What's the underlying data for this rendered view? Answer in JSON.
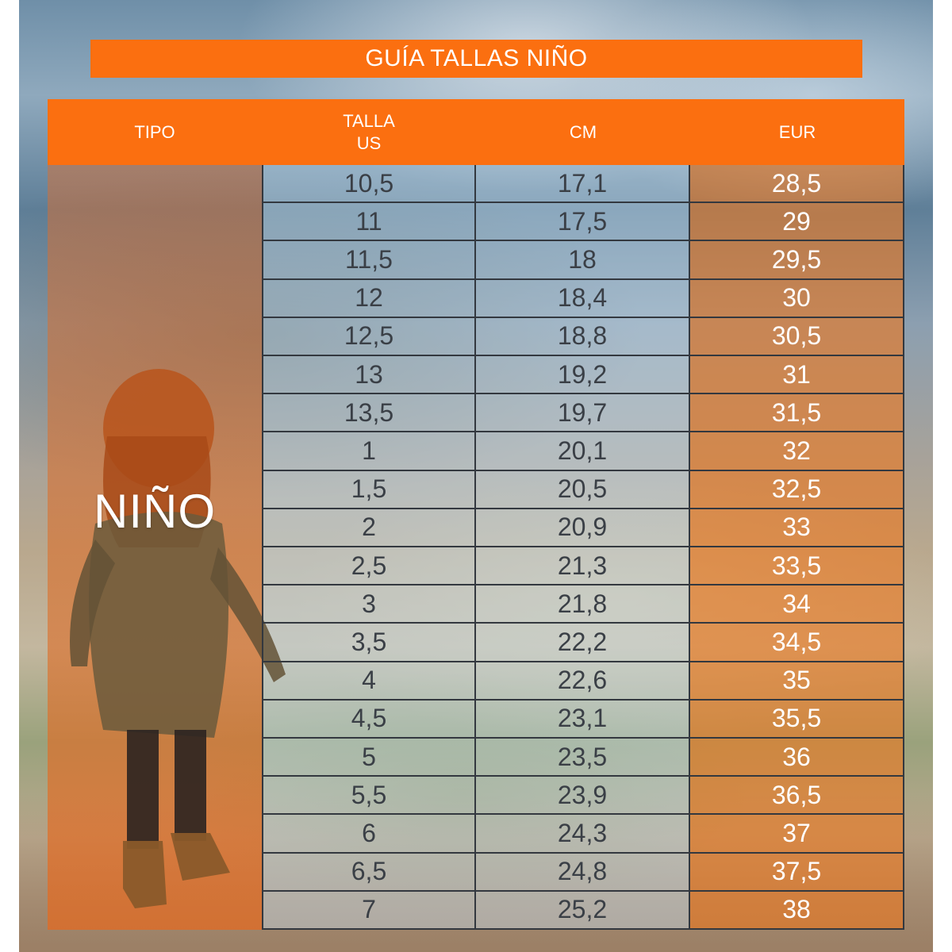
{
  "title": "GUÍA TALLAS NIÑO",
  "headers": {
    "tipo": "TIPO",
    "talla_line1": "TALLA",
    "talla_line2": "US",
    "cm": "CM",
    "eur": "EUR"
  },
  "tipo_label": "NIÑO",
  "colors": {
    "accent": "#fb6f10",
    "grid": "#33383f"
  },
  "rows": [
    {
      "us": "10,5",
      "cm": "17,1",
      "eur": "28,5"
    },
    {
      "us": "11",
      "cm": "17,5",
      "eur": "29"
    },
    {
      "us": "11,5",
      "cm": "18",
      "eur": "29,5"
    },
    {
      "us": "12",
      "cm": "18,4",
      "eur": "30"
    },
    {
      "us": "12,5",
      "cm": "18,8",
      "eur": "30,5"
    },
    {
      "us": "13",
      "cm": "19,2",
      "eur": "31"
    },
    {
      "us": "13,5",
      "cm": "19,7",
      "eur": "31,5"
    },
    {
      "us": "1",
      "cm": "20,1",
      "eur": "32"
    },
    {
      "us": "1,5",
      "cm": "20,5",
      "eur": "32,5"
    },
    {
      "us": "2",
      "cm": "20,9",
      "eur": "33"
    },
    {
      "us": "2,5",
      "cm": "21,3",
      "eur": "33,5"
    },
    {
      "us": "3",
      "cm": "21,8",
      "eur": "34"
    },
    {
      "us": "3,5",
      "cm": "22,2",
      "eur": "34,5"
    },
    {
      "us": "4",
      "cm": "22,6",
      "eur": "35"
    },
    {
      "us": "4,5",
      "cm": "23,1",
      "eur": "35,5"
    },
    {
      "us": "5",
      "cm": "23,5",
      "eur": "36"
    },
    {
      "us": "5,5",
      "cm": "23,9",
      "eur": "36,5"
    },
    {
      "us": "6",
      "cm": "24,3",
      "eur": "37"
    },
    {
      "us": "6,5",
      "cm": "24,8",
      "eur": "37,5"
    },
    {
      "us": "7",
      "cm": "25,2",
      "eur": "38"
    }
  ]
}
